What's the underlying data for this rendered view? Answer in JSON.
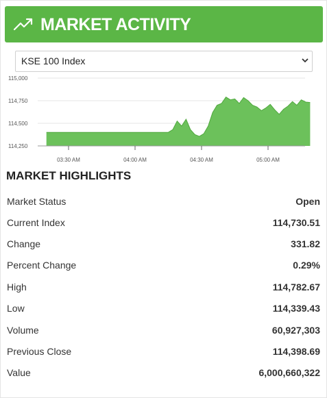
{
  "header": {
    "title": "MARKET ACTIVITY",
    "icon": "trending-up-icon",
    "color": "#5bb646"
  },
  "index_select": {
    "selected": "KSE 100 Index"
  },
  "chart_data": {
    "type": "area",
    "color": "#6cc15b",
    "y_ticks": [
      "115,000",
      "114,750",
      "114,500",
      "114,250"
    ],
    "x_ticks": [
      "03:30 AM",
      "04:00 AM",
      "04:30 AM",
      "05:00 AM"
    ],
    "ylim": [
      114250,
      115000
    ],
    "x": [
      "03:20",
      "03:55",
      "04:05",
      "04:15",
      "04:17",
      "04:19",
      "04:21",
      "04:23",
      "04:25",
      "04:27",
      "04:29",
      "04:31",
      "04:33",
      "04:35",
      "04:37",
      "04:39",
      "04:41",
      "04:43",
      "04:45",
      "04:47",
      "04:49",
      "04:51",
      "04:53",
      "04:55",
      "04:57",
      "04:59",
      "05:01",
      "05:03",
      "05:05",
      "05:07",
      "05:09",
      "05:11",
      "05:13",
      "05:15",
      "05:17",
      "05:19"
    ],
    "values": [
      114400,
      114400,
      114400,
      114400,
      114430,
      114525,
      114470,
      114545,
      114430,
      114375,
      114355,
      114385,
      114470,
      114620,
      114700,
      114720,
      114790,
      114760,
      114770,
      114720,
      114785,
      114750,
      114700,
      114680,
      114640,
      114670,
      114710,
      114650,
      114600,
      114655,
      114690,
      114740,
      114700,
      114760,
      114735,
      114730
    ]
  },
  "highlights": {
    "title": "MARKET HIGHLIGHTS",
    "rows": [
      {
        "label": "Market Status",
        "value": "Open"
      },
      {
        "label": "Current Index",
        "value": "114,730.51"
      },
      {
        "label": "Change",
        "value": "331.82"
      },
      {
        "label": "Percent Change",
        "value": "0.29%"
      },
      {
        "label": "High",
        "value": "114,782.67"
      },
      {
        "label": "Low",
        "value": "114,339.43"
      },
      {
        "label": "Volume",
        "value": "60,927,303"
      },
      {
        "label": "Previous Close",
        "value": "114,398.69"
      },
      {
        "label": "Value",
        "value": "6,000,660,322"
      }
    ]
  }
}
